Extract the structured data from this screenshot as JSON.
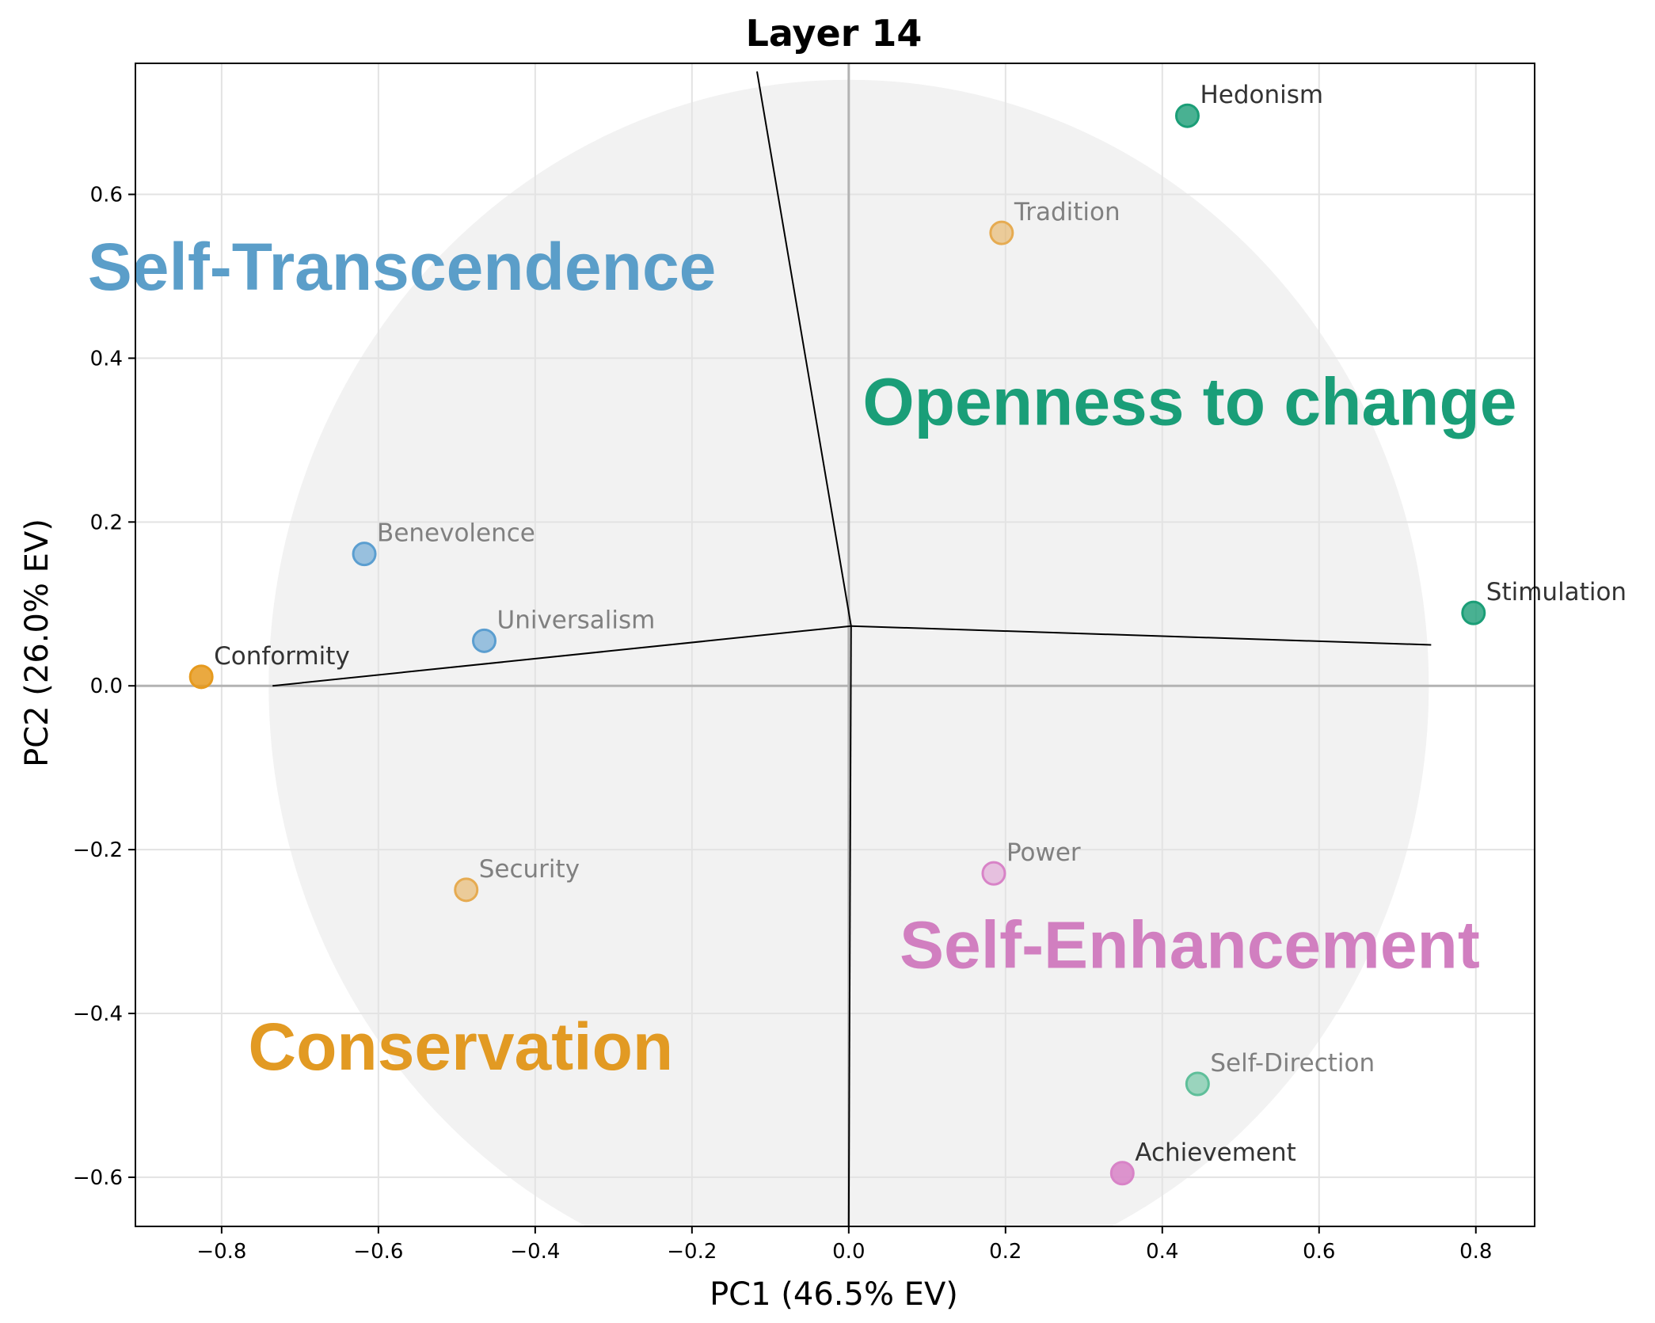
{
  "chart_data": {
    "type": "scatter",
    "title": "Layer 14",
    "xlabel": "PC1 (46.5% EV)",
    "ylabel": "PC2 (26.0% EV)",
    "xlim": [
      -0.91,
      0.875
    ],
    "ylim": [
      -0.66,
      0.76
    ],
    "xticks": [
      -0.8,
      -0.6,
      -0.4,
      -0.2,
      0.0,
      0.2,
      0.4,
      0.6,
      0.8
    ],
    "xtick_labels": [
      "−0.8",
      "−0.6",
      "−0.4",
      "−0.2",
      "0.0",
      "0.2",
      "0.4",
      "0.6",
      "0.8"
    ],
    "yticks": [
      0.6,
      0.4,
      0.2,
      0.0,
      -0.2,
      -0.4,
      -0.6
    ],
    "ytick_labels": [
      "0.6",
      "0.4",
      "0.2",
      "0.0",
      "−0.2",
      "−0.4",
      "−0.6"
    ],
    "grid": true,
    "circle": {
      "cx": 0.0,
      "cy": 0.0,
      "radius": 0.74,
      "color": "#f2f2f2"
    },
    "boundary_center": [
      0.003,
      0.073
    ],
    "boundary_ends": [
      [
        -0.117,
        0.75
      ],
      [
        -0.735,
        0.0
      ],
      [
        0.743,
        0.05
      ],
      [
        0.0,
        -0.66
      ]
    ],
    "points": [
      {
        "name": "Hedonism",
        "x": 0.432,
        "y": 0.696,
        "color": "#1b9e77",
        "alpha": 0.8,
        "label_color": "#333333"
      },
      {
        "name": "Tradition",
        "x": 0.195,
        "y": 0.553,
        "color": "#e6ab51",
        "alpha": 0.55,
        "label_color": "#808080"
      },
      {
        "name": "Benevolence",
        "x": -0.618,
        "y": 0.161,
        "color": "#5b9ed0",
        "alpha": 0.6,
        "label_color": "#808080"
      },
      {
        "name": "Universalism",
        "x": -0.465,
        "y": 0.055,
        "color": "#5b9ed0",
        "alpha": 0.6,
        "label_color": "#808080"
      },
      {
        "name": "Stimulation",
        "x": 0.797,
        "y": 0.089,
        "color": "#1b9e77",
        "alpha": 0.8,
        "label_color": "#333333"
      },
      {
        "name": "Conformity",
        "x": -0.826,
        "y": 0.011,
        "color": "#e69a1e",
        "alpha": 0.85,
        "label_color": "#333333"
      },
      {
        "name": "Power",
        "x": 0.185,
        "y": -0.229,
        "color": "#d883c7",
        "alpha": 0.45,
        "label_color": "#808080"
      },
      {
        "name": "Security",
        "x": -0.488,
        "y": -0.249,
        "color": "#e6ab51",
        "alpha": 0.55,
        "label_color": "#808080"
      },
      {
        "name": "Self-Direction",
        "x": 0.445,
        "y": -0.486,
        "color": "#5fbf9a",
        "alpha": 0.6,
        "label_color": "#808080"
      },
      {
        "name": "Achievement",
        "x": 0.349,
        "y": -0.595,
        "color": "#d883c7",
        "alpha": 0.85,
        "label_color": "#333333"
      }
    ],
    "region_labels": [
      {
        "text": "Self-Transcendence",
        "x": -0.57,
        "y": 0.505,
        "color": "#5b9ec9"
      },
      {
        "text": "Openness to change",
        "x": 0.435,
        "y": 0.34,
        "color": "#1a9e78"
      },
      {
        "text": "Self-Enhancement",
        "x": 0.435,
        "y": -0.323,
        "color": "#d17fc0"
      },
      {
        "text": "Conservation",
        "x": -0.495,
        "y": -0.447,
        "color": "#e29a23"
      }
    ]
  }
}
